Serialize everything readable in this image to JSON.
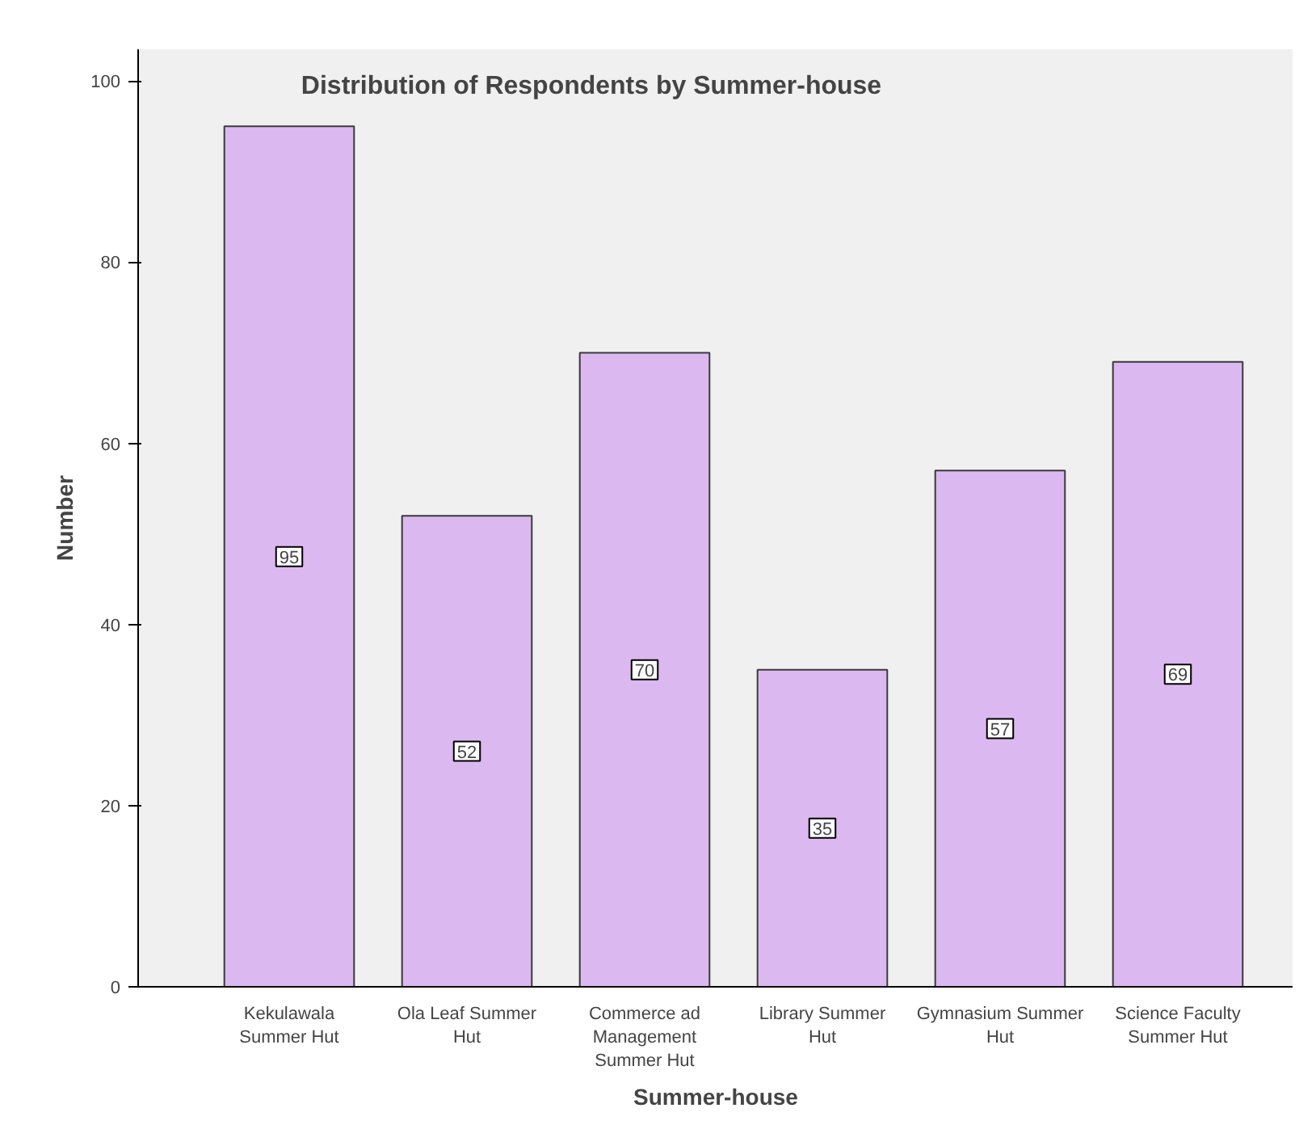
{
  "chart_data": {
    "type": "bar",
    "title": "Distribution of Respondents by Summer-house",
    "xlabel": "Summer-house",
    "ylabel": "Number",
    "categories": [
      "Kekulawala Summer Hut",
      "Ola Leaf Summer Hut",
      "Commerce ad Management Summer Hut",
      "Library Summer Hut",
      "Gymnasium Summer Hut",
      "Science Faculty Summer Hut"
    ],
    "values": [
      95,
      52,
      70,
      35,
      57,
      69
    ],
    "color": "#dcb8f0",
    "ylim": [
      0,
      103.5
    ],
    "yticks": [
      0,
      20,
      40,
      60,
      80,
      100
    ],
    "grid": false,
    "data_labels": true
  }
}
